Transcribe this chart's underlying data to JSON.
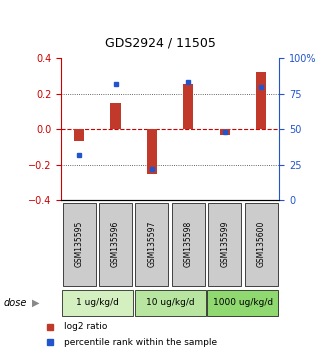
{
  "title": "GDS2924 / 11505",
  "samples": [
    "GSM135595",
    "GSM135596",
    "GSM135597",
    "GSM135598",
    "GSM135599",
    "GSM135600"
  ],
  "log2_ratio": [
    -0.065,
    0.15,
    -0.255,
    0.255,
    -0.03,
    0.325
  ],
  "percentile_rank": [
    32,
    82,
    22,
    83,
    48,
    80
  ],
  "dose_groups": [
    {
      "label": "1 ug/kg/d",
      "samples": [
        0,
        1
      ],
      "color": "#d4f0c0"
    },
    {
      "label": "10 ug/kg/d",
      "samples": [
        2,
        3
      ],
      "color": "#b8e6a0"
    },
    {
      "label": "1000 ug/kg/d",
      "samples": [
        4,
        5
      ],
      "color": "#90d870"
    }
  ],
  "bar_color_red": "#c0392b",
  "bar_color_blue": "#2255cc",
  "ylim_left": [
    -0.4,
    0.4
  ],
  "ylim_right": [
    0,
    100
  ],
  "yticks_left": [
    -0.4,
    -0.2,
    0,
    0.2,
    0.4
  ],
  "yticks_right": [
    0,
    25,
    50,
    75,
    100
  ],
  "ytick_labels_right": [
    "0",
    "25",
    "50",
    "75",
    "100%"
  ],
  "hline_zero_color": "#cc0000",
  "hline_grid_color": "#333333",
  "left_tick_color": "#cc0000",
  "right_tick_color": "#2255cc",
  "legend_red_label": "log2 ratio",
  "legend_blue_label": "percentile rank within the sample",
  "dose_label": "dose",
  "sample_box_color": "#cccccc",
  "bar_width": 0.28
}
